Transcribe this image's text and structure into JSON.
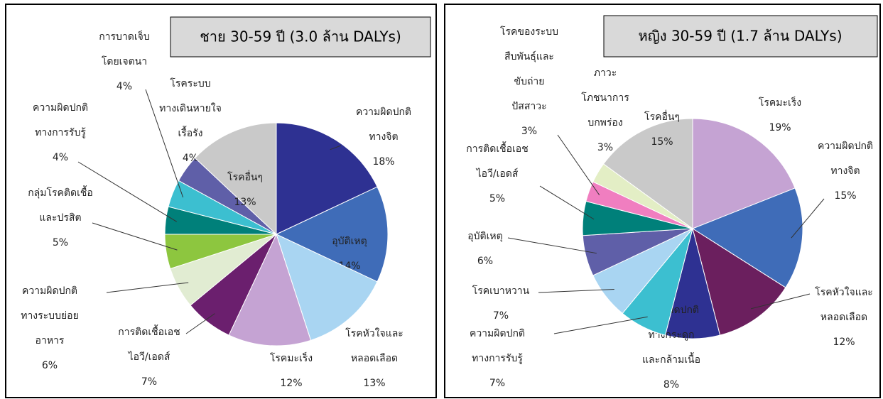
{
  "chart_data": [
    {
      "type": "pie",
      "title": "ชาย  30-59 ปี (3.0 ล้าน DALYs)",
      "categories": [
        [
          "ความผิดปกติ",
          "ทางจิต"
        ],
        [
          "อุบัติเหตุ"
        ],
        [
          "โรคหัวใจและ",
          "หลอดเลือด"
        ],
        [
          "โรคมะเร็ง"
        ],
        [
          "การติดเชื้อเอช",
          "ไอวี/เอดส์"
        ],
        [
          "ความผิดปกติ",
          "ทางระบบย่อย",
          "อาหาร"
        ],
        [
          "กลุ่มโรคติดเชื้อ",
          "และปรสิต"
        ],
        [
          "ความผิดปกติ",
          "ทางการรับรู้"
        ],
        [
          "การบาดเจ็บ",
          "โดยเจตนา"
        ],
        [
          "โรคระบบ",
          "ทางเดินหายใจ",
          "เรื้อรัง"
        ],
        [
          "โรคอื่นๆ"
        ]
      ],
      "values": [
        18,
        14,
        13,
        12,
        7,
        6,
        5,
        4,
        4,
        4,
        13
      ],
      "value_labels": [
        "18%",
        "14%",
        "13%",
        "12%",
        "7%",
        "6%",
        "5%",
        "4%",
        "4%",
        "4%",
        "13%"
      ],
      "colors": [
        "#2e3192",
        "#3f6cb8",
        "#a9d5f2",
        "#c5a3d3",
        "#6b1f6e",
        "#e1ecd2",
        "#8dc63f",
        "#00807a",
        "#3cbfd0",
        "#5f5fa8",
        "#c9c9c9"
      ]
    },
    {
      "type": "pie",
      "title": "หญิง  30-59 ปี (1.7 ล้าน DALYs)",
      "categories": [
        [
          "โรคมะเร็ง"
        ],
        [
          "ความผิดปกติ",
          "ทางจิต"
        ],
        [
          "โรคหัวใจและ",
          "หลอดเลือด"
        ],
        [
          "ความผิดปกติ",
          "ทางกระดูก",
          "และกล้ามเนื้อ"
        ],
        [
          "ความผิดปกติ",
          "ทางการรับรู้"
        ],
        [
          "โรคเบาหวาน"
        ],
        [
          "อุบัติเหตุ"
        ],
        [
          "การติดเชื้อเอช",
          "ไอวี/เอดส์"
        ],
        [
          "โรคของระบบ",
          "สืบพันธุ์และ",
          "ขับถ่าย",
          "ปัสสาวะ"
        ],
        [
          "ภาวะ",
          "โภชนาการ",
          "บกพร่อง"
        ],
        [
          "โรคอื่นๆ"
        ]
      ],
      "values": [
        19,
        15,
        12,
        8,
        7,
        7,
        6,
        5,
        3,
        3,
        15
      ],
      "value_labels": [
        "19%",
        "15%",
        "12%",
        "8%",
        "7%",
        "7%",
        "6%",
        "5%",
        "3%",
        "3%",
        "15%"
      ],
      "colors": [
        "#c5a3d3",
        "#3f6cb8",
        "#6b1f5e",
        "#2e3192",
        "#3cbfd0",
        "#a9d5f2",
        "#5f5fa8",
        "#00807a",
        "#f07ec0",
        "#e3eec5",
        "#c9c9c9"
      ]
    }
  ]
}
